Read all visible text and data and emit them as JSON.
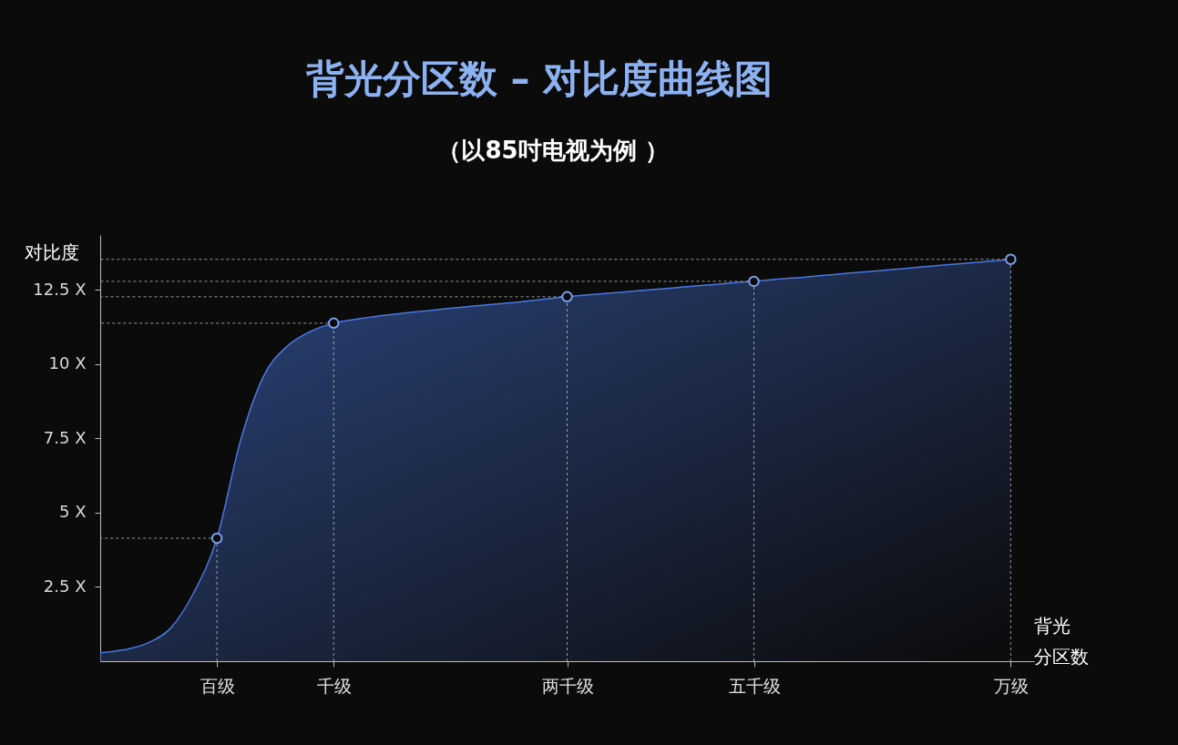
{
  "chart_data": {
    "type": "area",
    "title": "背光分区数 – 对比度曲线图",
    "subtitle": "（以85吋电视为例 ）",
    "xlabel": "背光分区数",
    "ylabel": "对比度",
    "categories": [
      null,
      null,
      null,
      null,
      null,
      "百级",
      null,
      null,
      null,
      null,
      "千级",
      null,
      null,
      null,
      null,
      null,
      null,
      null,
      null,
      null,
      "两千级",
      null,
      null,
      null,
      null,
      null,
      null,
      null,
      "五千级",
      null,
      null,
      null,
      null,
      null,
      null,
      null,
      null,
      null,
      null,
      "万级",
      null
    ],
    "ylim": [
      0,
      14.35
    ],
    "yticks": [
      {
        "value": 2.5,
        "label": "2.5 X"
      },
      {
        "value": 5,
        "label": "5 X"
      },
      {
        "value": 7.5,
        "label": "7.5 X"
      },
      {
        "value": 10,
        "label": "10 X"
      },
      {
        "value": 12.5,
        "label": "12.5 X"
      }
    ],
    "grid": "x",
    "ref_lines": [
      {
        "axis": "y",
        "value": 4.14,
        "line_style": "dashed",
        "color": "#bbbbbb"
      },
      {
        "axis": "y",
        "value": 11.38,
        "line_style": "dashed",
        "color": "#bbbbbb"
      },
      {
        "axis": "y",
        "value": 12.27,
        "line_style": "dashed",
        "color": "#bbbbbb"
      },
      {
        "axis": "y",
        "value": 12.79,
        "line_style": "dashed",
        "color": "#bbbbbb"
      },
      {
        "axis": "y",
        "value": 13.53,
        "line_style": "dashed",
        "color": "#bbbbbb"
      }
    ],
    "series": [
      {
        "color": "#4a78e0",
        "values": [
          0.28,
          0.38,
          0.6,
          1.1,
          2.3,
          4.14,
          7.4,
          9.6,
          10.6,
          11.1,
          11.38,
          11.52,
          11.63,
          11.72,
          11.8,
          11.88,
          11.96,
          12.03,
          12.1,
          12.19,
          12.27,
          12.34,
          12.4,
          12.47,
          12.53,
          12.6,
          12.66,
          12.73,
          12.79,
          12.86,
          12.92,
          12.99,
          13.06,
          13.12,
          13.19,
          13.26,
          13.33,
          13.39,
          13.46,
          13.53,
          null
        ]
      },
      {
        "type": "scatter",
        "color": "#7aa2f0",
        "marker": "circle",
        "values": [
          null,
          null,
          null,
          null,
          null,
          4.14,
          null,
          null,
          null,
          null,
          11.38,
          null,
          null,
          null,
          null,
          null,
          null,
          null,
          null,
          null,
          12.27,
          null,
          null,
          null,
          null,
          null,
          null,
          null,
          12.79,
          null,
          null,
          null,
          null,
          null,
          null,
          null,
          null,
          null,
          null,
          13.53,
          null
        ]
      }
    ]
  }
}
